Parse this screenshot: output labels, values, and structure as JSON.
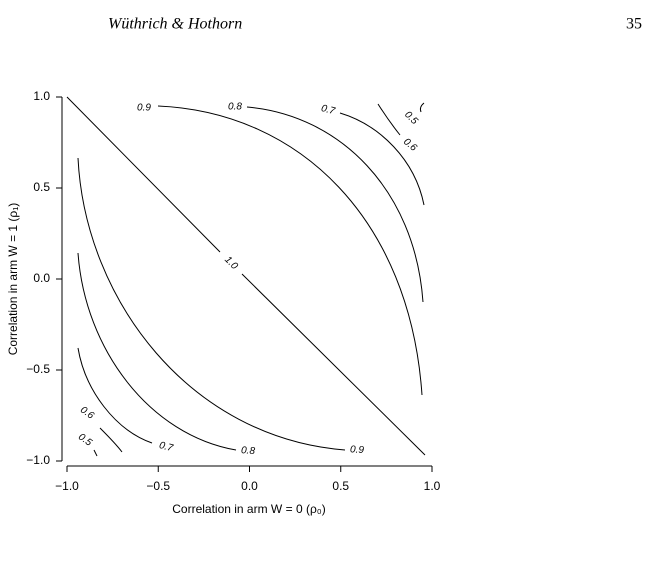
{
  "header": {
    "authors": "Wüthrich & Hothorn",
    "page": "35"
  },
  "chart_data": {
    "type": "contour",
    "xlabel": "Correlation in arm W = 0 (ρ₀)",
    "ylabel": "Correlation in arm W = 1 (ρ₁)",
    "xlim": [
      -1,
      1
    ],
    "ylim": [
      -1,
      1
    ],
    "xticks": [
      {
        "value": -1,
        "label": "−1.0"
      },
      {
        "value": -0.5,
        "label": "−0.5"
      },
      {
        "value": 0,
        "label": "0.0"
      },
      0.5,
      {
        "value": 1,
        "label": "1.0"
      }
    ],
    "yticks": [
      {
        "value": -1,
        "label": "−1.0"
      },
      {
        "value": -0.5,
        "label": "−0.5"
      },
      {
        "value": 0,
        "label": "0.0"
      },
      0.5,
      {
        "value": 1,
        "label": "1.0"
      }
    ],
    "contour_levels": [
      0.5,
      0.6,
      0.7,
      0.8,
      0.9,
      {
        "value": 1,
        "label": "1.0"
      }
    ]
  }
}
